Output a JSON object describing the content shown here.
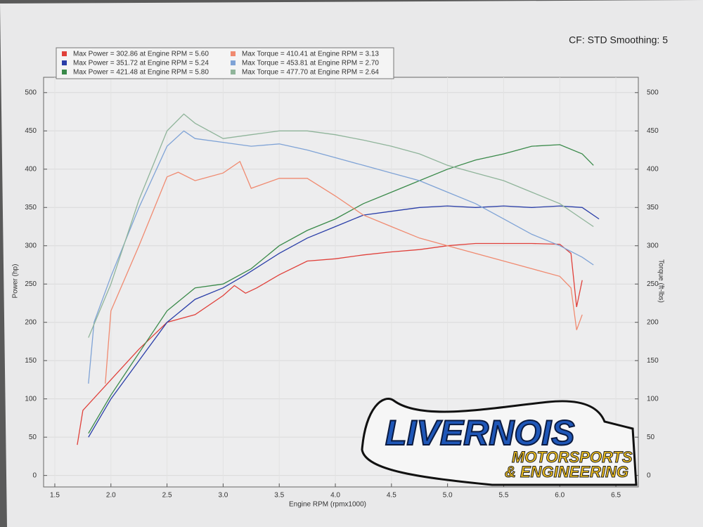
{
  "chart_data": {
    "type": "line",
    "subtitle": "CF: STD Smoothing: 5",
    "xlabel": "Engine RPM (rpmx1000)",
    "ylabel": "Power (hp)",
    "y2label": "Torque (ft-lbs)",
    "annotations": [
      "LIVERNOIS",
      "MOTORSPORTS",
      "& ENGINEERING"
    ],
    "xlim": [
      1.4,
      6.7
    ],
    "xticks": [
      1.5,
      {
        "value": 2,
        "label": "2.0"
      },
      2.5,
      {
        "value": 3,
        "label": "3.0"
      },
      3.5,
      {
        "value": 4,
        "label": "4.0"
      },
      4.5,
      {
        "value": 5,
        "label": "5.0"
      },
      5.5,
      {
        "value": 6,
        "label": "6.0"
      },
      6.5
    ],
    "ylim": [
      -15,
      520
    ],
    "yticks": [
      0,
      50,
      100,
      150,
      200,
      250,
      300,
      350,
      400,
      450,
      500
    ],
    "y2lim": [
      -15,
      520
    ],
    "y2ticks": [
      0,
      50,
      100,
      150,
      200,
      250,
      300,
      350,
      400,
      450,
      500
    ],
    "grid": true,
    "series": [
      {
        "name": "Max Power = 302.86 at Engine RPM = 5.60",
        "color": "#e0403a",
        "x": [
          1.7,
          1.75,
          2.0,
          2.25,
          2.5,
          2.75,
          3.0,
          3.1,
          3.2,
          3.3,
          3.5,
          3.75,
          4.0,
          4.25,
          4.5,
          4.75,
          5.0,
          5.25,
          5.5,
          5.75,
          6.0,
          6.1,
          6.15,
          6.2
        ],
        "values": [
          40,
          85,
          125,
          165,
          200,
          210,
          235,
          248,
          238,
          245,
          262,
          280,
          283,
          288,
          292,
          295,
          300,
          303,
          303,
          303,
          302,
          290,
          220,
          255
        ]
      },
      {
        "name": "Max Power = 351.72 at Engine RPM = 5.24",
        "color": "#2a3ea8",
        "x": [
          1.8,
          2.0,
          2.25,
          2.5,
          2.75,
          3.0,
          3.2,
          3.5,
          3.75,
          4.0,
          4.25,
          4.5,
          4.75,
          5.0,
          5.25,
          5.5,
          5.75,
          6.0,
          6.2,
          6.35
        ],
        "values": [
          50,
          100,
          150,
          200,
          230,
          245,
          262,
          290,
          310,
          325,
          340,
          345,
          350,
          352,
          350,
          352,
          350,
          352,
          350,
          335
        ]
      },
      {
        "name": "Max Power = 421.48 at Engine RPM = 5.80",
        "color": "#3a8a4a",
        "x": [
          1.8,
          2.0,
          2.25,
          2.5,
          2.75,
          3.0,
          3.25,
          3.5,
          3.75,
          4.0,
          4.25,
          4.5,
          4.75,
          5.0,
          5.25,
          5.5,
          5.75,
          6.0,
          6.2,
          6.3
        ],
        "values": [
          55,
          105,
          160,
          215,
          245,
          250,
          270,
          300,
          320,
          335,
          355,
          370,
          385,
          400,
          412,
          420,
          430,
          432,
          420,
          405
        ]
      },
      {
        "name": "Max Torque = 410.41 at Engine RPM = 3.13",
        "color": "#f08a70",
        "axis": "y2",
        "x": [
          1.95,
          2.0,
          2.25,
          2.5,
          2.6,
          2.75,
          3.0,
          3.15,
          3.25,
          3.5,
          3.75,
          4.0,
          4.25,
          4.5,
          4.75,
          5.0,
          5.25,
          5.5,
          5.75,
          6.0,
          6.1,
          6.15,
          6.2
        ],
        "values": [
          120,
          215,
          300,
          390,
          396,
          385,
          395,
          410,
          375,
          388,
          388,
          365,
          340,
          325,
          310,
          300,
          290,
          280,
          270,
          260,
          245,
          190,
          210
        ]
      },
      {
        "name": "Max Torque = 453.81 at Engine RPM = 2.70",
        "color": "#7fa3d6",
        "axis": "y2",
        "x": [
          1.8,
          1.85,
          2.0,
          2.25,
          2.5,
          2.65,
          2.75,
          3.0,
          3.25,
          3.5,
          3.75,
          4.0,
          4.25,
          4.5,
          4.75,
          5.0,
          5.25,
          5.5,
          5.75,
          6.0,
          6.2,
          6.3
        ],
        "values": [
          120,
          200,
          260,
          350,
          430,
          450,
          440,
          435,
          430,
          433,
          425,
          415,
          405,
          395,
          385,
          370,
          355,
          335,
          315,
          300,
          285,
          275
        ]
      },
      {
        "name": "Max Torque = 477.70 at Engine RPM = 2.64",
        "color": "#8fb49a",
        "axis": "y2",
        "x": [
          1.8,
          2.0,
          2.25,
          2.5,
          2.65,
          2.75,
          3.0,
          3.25,
          3.5,
          3.75,
          4.0,
          4.25,
          4.5,
          4.75,
          5.0,
          5.25,
          5.5,
          5.75,
          6.0,
          6.2,
          6.3
        ],
        "values": [
          180,
          250,
          360,
          450,
          472,
          460,
          440,
          445,
          450,
          450,
          445,
          438,
          430,
          420,
          405,
          395,
          385,
          370,
          355,
          335,
          325
        ]
      }
    ]
  }
}
